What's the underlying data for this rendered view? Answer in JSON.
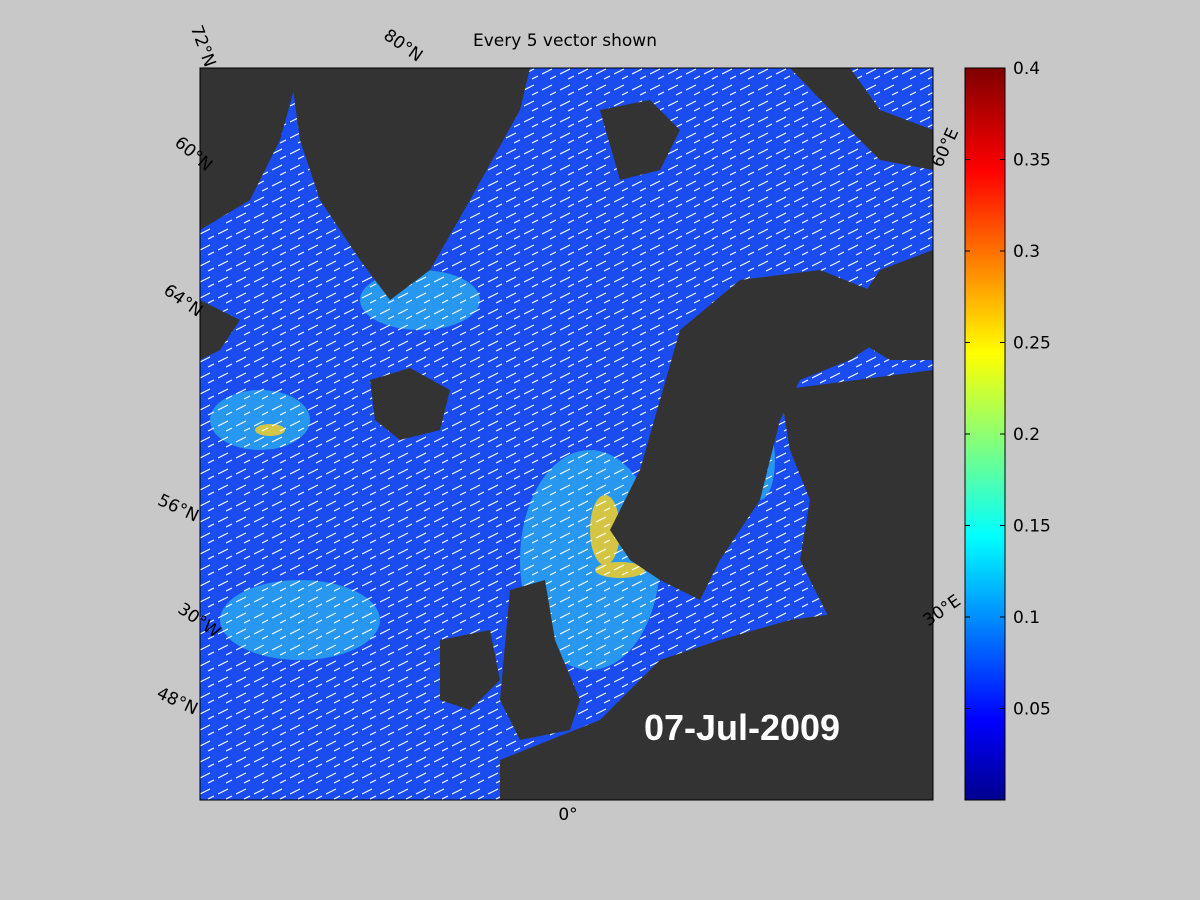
{
  "title": "Every 5 vector shown",
  "date_label": "07-Jul-2009",
  "graticule_labels": {
    "left": [
      "72°N",
      "60°N",
      "64°N",
      "56°N",
      "30°W",
      "48°N"
    ],
    "top": "80°N",
    "right": [
      "60°E",
      "30°E"
    ],
    "bottom": "0°"
  },
  "colorbar": {
    "lim": [
      0,
      0.4
    ],
    "ticks": [
      0.05,
      0.1,
      0.15,
      0.2,
      0.25,
      0.3,
      0.35,
      0.4
    ]
  }
}
